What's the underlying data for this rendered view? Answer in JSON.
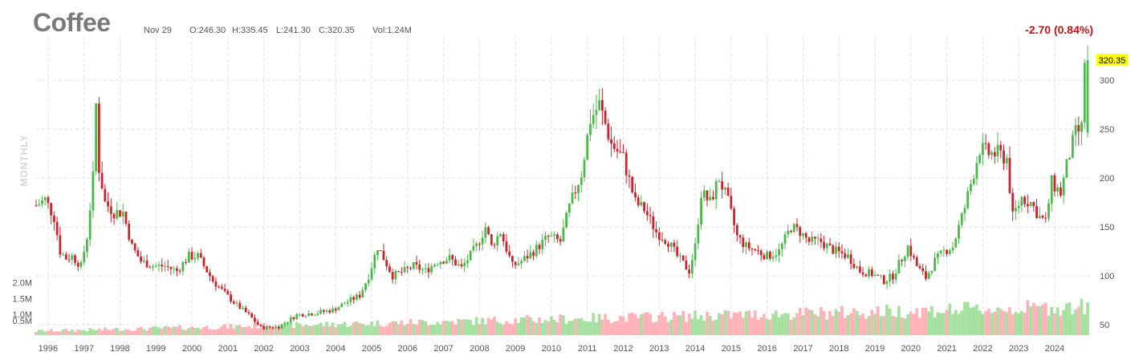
{
  "symbol": "Coffee",
  "period": "MONTHLY",
  "ohlc": {
    "date": "Nov 29",
    "open": "O:246.30",
    "high": "H:335.45",
    "low": "L:241.30",
    "close": "C:320.35",
    "volume": "Vol:1.24M"
  },
  "change": "-2.70 (0.84%)",
  "last_price_label": "320.35",
  "colors": {
    "up": "#4cb84c",
    "down": "#c8242b",
    "up_volume": "#a6e0a0",
    "down_volume": "#ffb3b8",
    "grid": "#e2e2e2",
    "price_tag": "#ffff00",
    "change": "#c0121b"
  },
  "chart_data": {
    "type": "candlestick",
    "interval": "monthly",
    "x_range": [
      "1995-09",
      "2024-11"
    ],
    "ylim": [
      45,
      330
    ],
    "volume_ylim": [
      0,
      2.3
    ],
    "y_ticks": [
      50,
      100,
      150,
      200,
      250,
      300
    ],
    "y_tick_labels": [
      "50",
      "100",
      "150",
      "200",
      "250",
      "300"
    ],
    "volume_ticks": [
      0.5,
      1.0,
      1.5,
      2.0
    ],
    "volume_tick_labels": [
      "0.5M",
      "1.0M",
      "1.5M",
      "2.0M"
    ],
    "x_tick_labels": [
      "1996",
      "1997",
      "1998",
      "1999",
      "2000",
      "2001",
      "2002",
      "2003",
      "2004",
      "2005",
      "2006",
      "2007",
      "2008",
      "2009",
      "2010",
      "2011",
      "2012",
      "2013",
      "2014",
      "2015",
      "2016",
      "2017",
      "2018",
      "2019",
      "2020",
      "2021",
      "2022",
      "2023",
      "2024"
    ],
    "grid": true,
    "last_close": 320.35,
    "close_points": [
      [
        "1995-09",
        172
      ],
      [
        "1995-12",
        178
      ],
      [
        "1996-03",
        160
      ],
      [
        "1996-05",
        125
      ],
      [
        "1996-07",
        118
      ],
      [
        "1996-09",
        120
      ],
      [
        "1996-12",
        110
      ],
      [
        "1997-02",
        140
      ],
      [
        "1997-04",
        200
      ],
      [
        "1997-05",
        275
      ],
      [
        "1997-06",
        210
      ],
      [
        "1997-08",
        175
      ],
      [
        "1997-11",
        165
      ],
      [
        "1998-02",
        165
      ],
      [
        "1998-05",
        130
      ],
      [
        "1998-08",
        115
      ],
      [
        "1998-12",
        110
      ],
      [
        "1999-04",
        110
      ],
      [
        "1999-08",
        105
      ],
      [
        "1999-12",
        120
      ],
      [
        "2000-03",
        120
      ],
      [
        "2000-08",
        95
      ],
      [
        "2000-12",
        82
      ],
      [
        "2001-04",
        70
      ],
      [
        "2001-08",
        60
      ],
      [
        "2001-12",
        47
      ],
      [
        "2002-06",
        48
      ],
      [
        "2002-12",
        60
      ],
      [
        "2003-06",
        62
      ],
      [
        "2003-12",
        65
      ],
      [
        "2004-04",
        72
      ],
      [
        "2004-09",
        80
      ],
      [
        "2004-12",
        100
      ],
      [
        "2005-03",
        130
      ],
      [
        "2005-08",
        100
      ],
      [
        "2005-12",
        105
      ],
      [
        "2006-03",
        110
      ],
      [
        "2006-07",
        105
      ],
      [
        "2006-11",
        115
      ],
      [
        "2007-03",
        118
      ],
      [
        "2007-07",
        108
      ],
      [
        "2007-12",
        130
      ],
      [
        "2008-03",
        150
      ],
      [
        "2008-05",
        130
      ],
      [
        "2008-08",
        145
      ],
      [
        "2008-12",
        110
      ],
      [
        "2009-03",
        115
      ],
      [
        "2009-07",
        125
      ],
      [
        "2009-12",
        140
      ],
      [
        "2010-04",
        135
      ],
      [
        "2010-07",
        170
      ],
      [
        "2010-11",
        205
      ],
      [
        "2011-02",
        260
      ],
      [
        "2011-05",
        275
      ],
      [
        "2011-09",
        235
      ],
      [
        "2012-01",
        220
      ],
      [
        "2012-05",
        175
      ],
      [
        "2012-08",
        168
      ],
      [
        "2012-12",
        145
      ],
      [
        "2013-04",
        135
      ],
      [
        "2013-07",
        120
      ],
      [
        "2013-11",
        105
      ],
      [
        "2014-01",
        130
      ],
      [
        "2014-03",
        185
      ],
      [
        "2014-06",
        175
      ],
      [
        "2014-09",
        200
      ],
      [
        "2014-12",
        175
      ],
      [
        "2015-03",
        140
      ],
      [
        "2015-06",
        130
      ],
      [
        "2015-10",
        125
      ],
      [
        "2016-01",
        120
      ],
      [
        "2016-05",
        125
      ],
      [
        "2016-09",
        150
      ],
      [
        "2016-12",
        145
      ],
      [
        "2017-03",
        135
      ],
      [
        "2017-07",
        135
      ],
      [
        "2017-10",
        128
      ],
      [
        "2017-12",
        125
      ],
      [
        "2018-04",
        120
      ],
      [
        "2018-08",
        105
      ],
      [
        "2018-12",
        102
      ],
      [
        "2019-04",
        95
      ],
      [
        "2019-07",
        100
      ],
      [
        "2019-12",
        130
      ],
      [
        "2020-03",
        110
      ],
      [
        "2020-06",
        98
      ],
      [
        "2020-09",
        115
      ],
      [
        "2020-12",
        125
      ],
      [
        "2021-03",
        130
      ],
      [
        "2021-07",
        170
      ],
      [
        "2021-12",
        230
      ],
      [
        "2022-03",
        225
      ],
      [
        "2022-06",
        225
      ],
      [
        "2022-09",
        220
      ],
      [
        "2022-11",
        160
      ],
      [
        "2023-02",
        180
      ],
      [
        "2023-05",
        175
      ],
      [
        "2023-08",
        160
      ],
      [
        "2023-10",
        155
      ],
      [
        "2023-12",
        195
      ],
      [
        "2024-03",
        185
      ],
      [
        "2024-06",
        225
      ],
      [
        "2024-08",
        245
      ],
      [
        "2024-10",
        250
      ],
      [
        "2024-11",
        320.35
      ]
    ]
  }
}
